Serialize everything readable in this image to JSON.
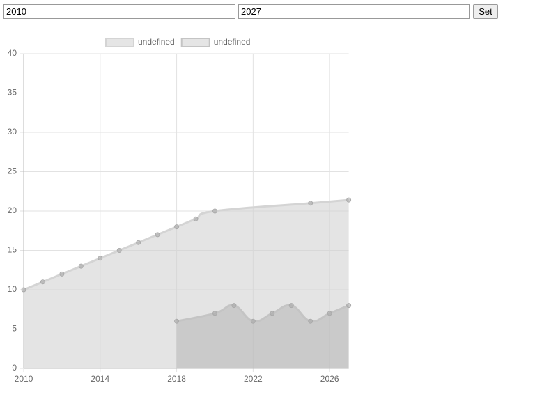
{
  "form": {
    "start": "2010",
    "end": "2027",
    "button": "Set"
  },
  "chart_data": {
    "type": "area",
    "xlim": [
      2010,
      2027
    ],
    "xticks": [
      2010,
      2014,
      2018,
      2022,
      2026
    ],
    "ylim": [
      0,
      40
    ],
    "yticks": [
      0,
      5,
      10,
      15,
      20,
      25,
      30,
      35,
      40
    ],
    "grid": true,
    "series": [
      {
        "name": "undefined",
        "color": "#d4d4d4",
        "x": [
          2010,
          2011,
          2012,
          2013,
          2014,
          2015,
          2016,
          2017,
          2018,
          2019,
          2020,
          2025,
          2027
        ],
        "values": [
          10,
          11,
          12,
          13,
          14,
          15,
          16,
          17,
          18,
          19,
          20,
          21,
          21.4
        ]
      },
      {
        "name": "undefined",
        "color": "#c4c4c4",
        "x": [
          2018,
          2020,
          2021,
          2022,
          2023,
          2024,
          2025,
          2026,
          2027
        ],
        "values": [
          6,
          7,
          8,
          6,
          7,
          8,
          6,
          7,
          8
        ]
      }
    ]
  }
}
